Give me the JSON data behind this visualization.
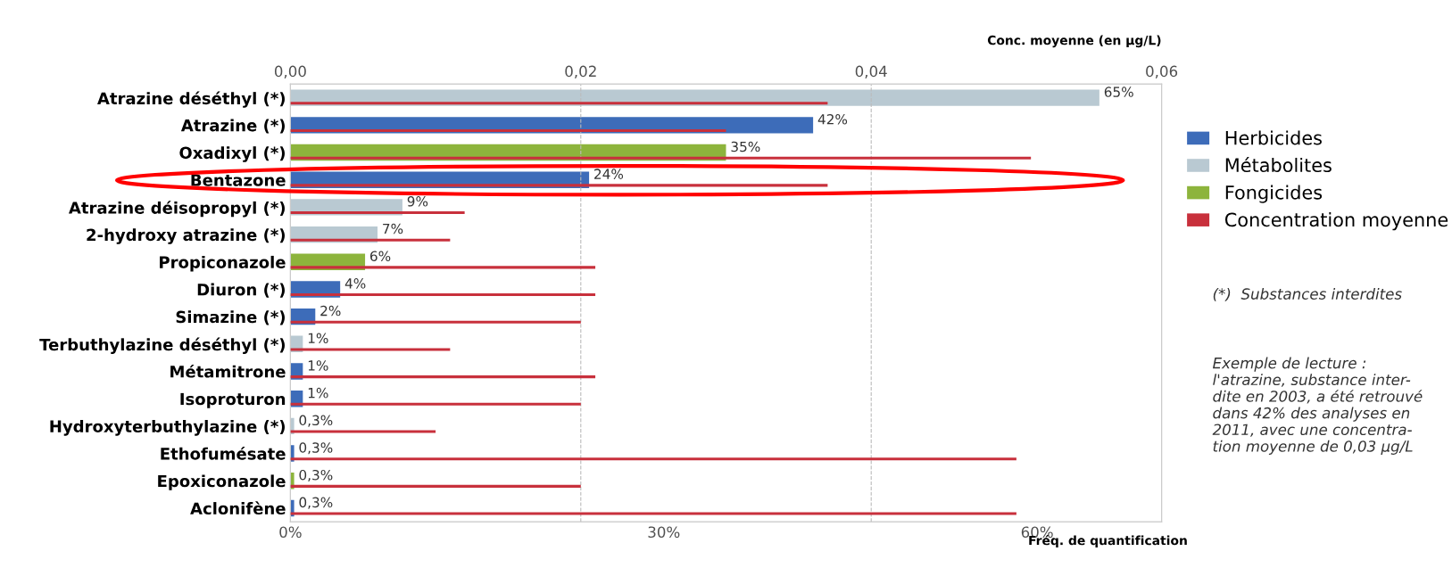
{
  "chart_data": {
    "type": "bar",
    "orientation": "horizontal",
    "categories": [
      "Atrazine déséthyl (*)",
      "Atrazine (*)",
      "Oxadixyl (*)",
      "Bentazone",
      "Atrazine déisopropyl (*)",
      "2-hydroxy atrazine (*)",
      "Propiconazole",
      "Diuron (*)",
      "Simazine (*)",
      "Terbuthylazine déséthyl (*)",
      "Métamitrone",
      "Isoproturon",
      "Hydroxyterbuthylazine (*)",
      "Ethofumésate",
      "Epoxiconazole",
      "Aclonifène"
    ],
    "series": [
      {
        "name": "Herbicides",
        "color": "#3d6cb9",
        "values": [
          null,
          42,
          null,
          24,
          null,
          null,
          null,
          4,
          2,
          null,
          1,
          1,
          null,
          0.3,
          null,
          0.3
        ],
        "value_labels": [
          null,
          "42%",
          null,
          "24%",
          null,
          null,
          null,
          "4%",
          "2%",
          null,
          "1%",
          "1%",
          null,
          "0,3%",
          null,
          "0,3%"
        ]
      },
      {
        "name": "Métabolites",
        "color": "#b9c9d2",
        "values": [
          65,
          null,
          null,
          null,
          9,
          7,
          null,
          null,
          null,
          1,
          null,
          null,
          0.3,
          null,
          null,
          null
        ],
        "value_labels": [
          "65%",
          null,
          null,
          null,
          "9%",
          "7%",
          null,
          null,
          null,
          "1%",
          null,
          null,
          "0,3%",
          null,
          null,
          null
        ]
      },
      {
        "name": "Fongicides",
        "color": "#8db43c",
        "values": [
          null,
          null,
          35,
          null,
          null,
          null,
          6,
          null,
          null,
          null,
          null,
          null,
          null,
          null,
          0.3,
          null
        ],
        "value_labels": [
          null,
          null,
          "35%",
          null,
          null,
          null,
          "6%",
          null,
          null,
          null,
          null,
          null,
          null,
          null,
          "0,3%",
          null
        ]
      },
      {
        "name": "Concentration moyenne",
        "color": "#c8303c",
        "axis": "x2",
        "values": [
          0.037,
          0.03,
          0.051,
          0.037,
          0.012,
          0.011,
          0.021,
          0.021,
          0.02,
          0.011,
          0.021,
          0.02,
          0.01,
          0.05,
          0.02,
          0.05
        ]
      }
    ],
    "xlim": [
      0,
      70
    ],
    "xticks": [
      {
        "value": 0,
        "label": "0%"
      },
      {
        "value": 30,
        "label": "30%"
      },
      {
        "value": 60,
        "label": "60%"
      }
    ],
    "x2lim": [
      0,
      0.06
    ],
    "x2ticks": [
      {
        "value": 0,
        "label": "0,00"
      },
      {
        "value": 0.02,
        "label": "0,02"
      },
      {
        "value": 0.04,
        "label": "0,04"
      },
      {
        "value": 0.06,
        "label": "0,06"
      }
    ],
    "xlabel": "Fréq. de quantification",
    "x2label": "Conc. moyenne (en µg/L)",
    "grid": "x",
    "legend": "right",
    "annotations": [
      "(*)  Substances interdites",
      "Exemple de lecture :\nl'atrazine, substance inter-\ndite en 2003, a été retrouvé\ndans 42% des analyses en\n2011, avec une concentra-\ntion moyenne de 0,03 µg/L"
    ]
  }
}
